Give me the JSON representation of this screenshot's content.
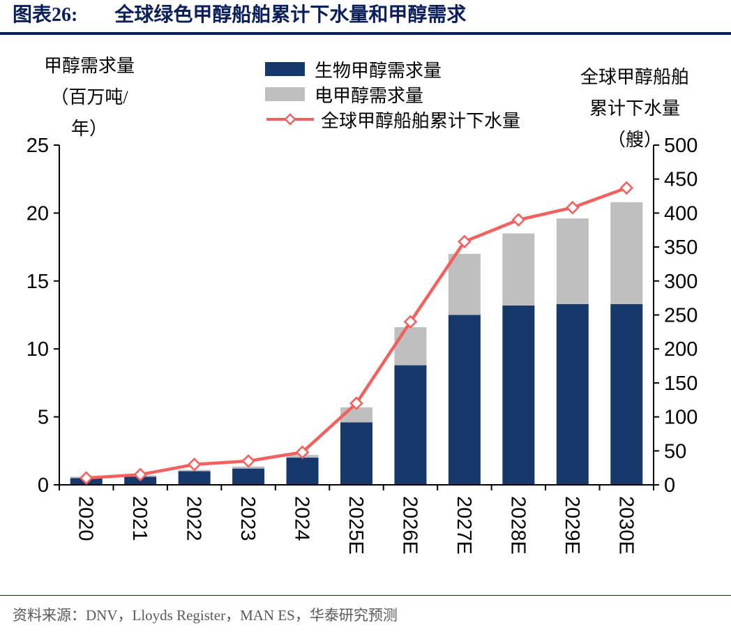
{
  "header": {
    "tag": "图表26:",
    "title": "全球绿色甲醇船舶累计下水量和甲醇需求"
  },
  "axes_titles": {
    "left": [
      "甲醇需求量",
      "（百万吨/",
      "年）"
    ],
    "right": [
      "全球甲醇船舶",
      "累计下水量",
      "（艘）"
    ]
  },
  "footer": {
    "source": "资料来源：DNV，Lloyds Register，MAN ES，华泰研究预测"
  },
  "colors": {
    "navy-bar": "#17386B",
    "gray-bar": "#BFBFBF",
    "line-red": "#F2605F",
    "title-navy": "#0A1F5A",
    "text-gray": "#595959",
    "axis-black": "#000000"
  },
  "chart_data": {
    "type": "bar",
    "subtype": "stacked-bars-with-line",
    "title": "全球绿色甲醇船舶累计下水量和甲醇需求",
    "categories": [
      "2020",
      "2021",
      "2022",
      "2023",
      "2024",
      "2025E",
      "2026E",
      "2027E",
      "2028E",
      "2029E",
      "2030E"
    ],
    "series": [
      {
        "name": "生物甲醇需求量",
        "type": "bar",
        "axis": "left",
        "color": "#17386B",
        "values": [
          0.5,
          0.6,
          1.0,
          1.2,
          2.0,
          4.6,
          8.8,
          12.5,
          13.2,
          13.3,
          13.3
        ]
      },
      {
        "name": "电甲醇需求量",
        "type": "bar",
        "axis": "left",
        "color": "#BFBFBF",
        "values": [
          0.1,
          0.1,
          0.1,
          0.15,
          0.2,
          1.1,
          2.8,
          4.5,
          5.3,
          6.3,
          7.5
        ]
      },
      {
        "name": "全球甲醇船舶累计下水量",
        "type": "line",
        "axis": "right",
        "color": "#F2605F",
        "values": [
          10,
          15,
          30,
          35,
          48,
          120,
          240,
          358,
          390,
          408,
          437
        ]
      }
    ],
    "left_axis": {
      "label": "甲醇需求量（百万吨/年）",
      "min": 0,
      "max": 25,
      "step": 5,
      "ticks": [
        0,
        5,
        10,
        15,
        20,
        25
      ]
    },
    "right_axis": {
      "label": "全球甲醇船舶累计下水量（艘）",
      "min": 0,
      "max": 500,
      "step": 50,
      "ticks": [
        0,
        50,
        100,
        150,
        200,
        250,
        300,
        350,
        400,
        450,
        500
      ]
    },
    "grid": false,
    "legend_position": "top-center"
  }
}
